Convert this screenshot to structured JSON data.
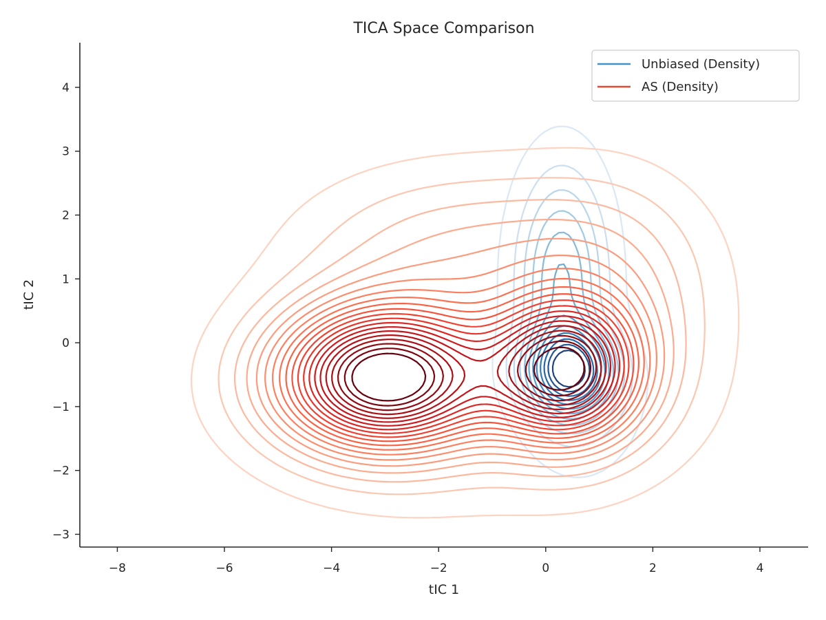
{
  "chart_data": {
    "type": "contour",
    "title": "TICA Space Comparison",
    "xlabel": "tIC 1",
    "ylabel": "tIC 2",
    "xlim": [
      -8.7,
      4.9
    ],
    "ylim": [
      -3.2,
      4.7
    ],
    "x_ticks": [
      -8,
      -6,
      -4,
      -2,
      0,
      2,
      4
    ],
    "y_ticks": [
      -3,
      -2,
      -1,
      0,
      1,
      2,
      3,
      4
    ],
    "x_tick_labels": [
      "−8",
      "−6",
      "−4",
      "−2",
      "0",
      "2",
      "4"
    ],
    "y_tick_labels": [
      "−3",
      "−2",
      "−1",
      "0",
      "1",
      "2",
      "3",
      "4"
    ],
    "grid": false,
    "legend_position": "upper-right",
    "series": [
      {
        "name": "Unbiased (Density)",
        "color": "#4292c6",
        "colormap": "Blues",
        "levels": 12,
        "components": [
          {
            "weight": 1.0,
            "cx": 0.45,
            "cy": -0.45,
            "sx": 0.55,
            "sy": 0.45
          },
          {
            "weight": 0.55,
            "cx": 0.3,
            "cy": 1.0,
            "sx": 0.55,
            "sy": 1.1
          },
          {
            "weight": 0.12,
            "cx": 0.7,
            "cy": -1.1,
            "sx": 0.7,
            "sy": 0.7
          },
          {
            "weight": 0.03,
            "cx": -3.2,
            "cy": -0.6,
            "sx": 0.25,
            "sy": 0.22
          },
          {
            "weight": 0.03,
            "cx": -2.5,
            "cy": 1.8,
            "sx": 0.45,
            "sy": 0.4
          }
        ]
      },
      {
        "name": "AS (Density)",
        "color": "#e34a33",
        "colormap": "Reds",
        "levels": 20,
        "components": [
          {
            "weight": 1.0,
            "cx": -3.0,
            "cy": -0.55,
            "sx": 1.35,
            "sy": 0.75
          },
          {
            "weight": 0.85,
            "cx": 0.35,
            "cy": -0.45,
            "sx": 0.95,
            "sy": 0.75
          },
          {
            "weight": 0.18,
            "cx": -1.5,
            "cy": 1.4,
            "sx": 2.0,
            "sy": 0.9
          },
          {
            "weight": 0.15,
            "cx": 1.2,
            "cy": 0.8,
            "sx": 1.3,
            "sy": 1.2
          },
          {
            "weight": 0.08,
            "cx": -1.2,
            "cy": -1.0,
            "sx": 3.0,
            "sy": 1.3
          }
        ]
      }
    ]
  }
}
